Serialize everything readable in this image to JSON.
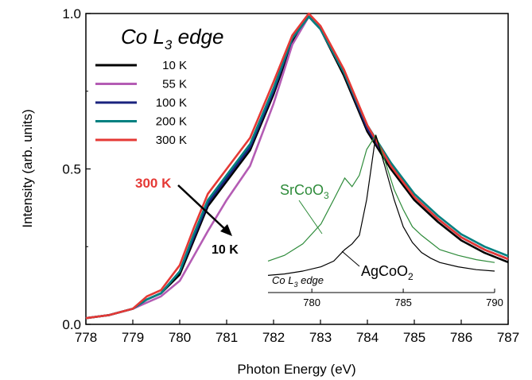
{
  "chart_data": [
    {
      "type": "line",
      "title": "Co L3 edge",
      "title_parts": {
        "main": "Co L",
        "sub": "3",
        "tail": " edge"
      },
      "xlabel": "Photon Energy (eV)",
      "ylabel": "Intensity (arb. units)",
      "xlim": [
        778,
        787
      ],
      "ylim": [
        0,
        1.0
      ],
      "x_ticks": [
        "778",
        "779",
        "780",
        "781",
        "782",
        "783",
        "784",
        "785",
        "786",
        "787"
      ],
      "y_ticks": [
        "0.0",
        "0.5",
        "1.0"
      ],
      "legend_position": "top-left",
      "series": [
        {
          "name": "10 K",
          "color": "#000000",
          "x": [
            778,
            778.5,
            779,
            779.3,
            779.6,
            780,
            780.3,
            780.6,
            781,
            781.5,
            782,
            782.4,
            782.75,
            783,
            783.5,
            784,
            784.5,
            785,
            785.5,
            786,
            786.5,
            787
          ],
          "y": [
            0.02,
            0.03,
            0.05,
            0.08,
            0.1,
            0.16,
            0.27,
            0.38,
            0.46,
            0.56,
            0.74,
            0.91,
            0.99,
            0.95,
            0.8,
            0.62,
            0.5,
            0.4,
            0.33,
            0.27,
            0.23,
            0.2
          ]
        },
        {
          "name": "55 K",
          "color": "#b45cb4",
          "x": [
            778,
            778.5,
            779,
            779.3,
            779.6,
            780,
            780.3,
            780.6,
            781,
            781.5,
            782,
            782.4,
            782.75,
            783,
            783.5,
            784,
            784.5,
            785,
            785.5,
            786,
            786.5,
            787
          ],
          "y": [
            0.02,
            0.03,
            0.05,
            0.07,
            0.09,
            0.14,
            0.22,
            0.3,
            0.4,
            0.51,
            0.71,
            0.9,
            0.99,
            0.95,
            0.81,
            0.63,
            0.51,
            0.41,
            0.34,
            0.28,
            0.24,
            0.21
          ]
        },
        {
          "name": "100 K",
          "color": "#1a237e",
          "x": [
            778,
            778.5,
            779,
            779.3,
            779.6,
            780,
            780.3,
            780.6,
            781,
            781.5,
            782,
            782.4,
            782.75,
            783,
            783.5,
            784,
            784.5,
            785,
            785.5,
            786,
            786.5,
            787
          ],
          "y": [
            0.02,
            0.03,
            0.05,
            0.08,
            0.1,
            0.17,
            0.28,
            0.39,
            0.47,
            0.57,
            0.75,
            0.92,
            0.99,
            0.95,
            0.81,
            0.63,
            0.51,
            0.41,
            0.34,
            0.28,
            0.24,
            0.21
          ]
        },
        {
          "name": "200 K",
          "color": "#008080",
          "x": [
            778,
            778.5,
            779,
            779.3,
            779.6,
            780,
            780.3,
            780.6,
            781,
            781.5,
            782,
            782.4,
            782.75,
            783,
            783.5,
            784,
            784.5,
            785,
            785.5,
            786,
            786.5,
            787
          ],
          "y": [
            0.02,
            0.03,
            0.05,
            0.08,
            0.1,
            0.17,
            0.29,
            0.4,
            0.48,
            0.58,
            0.76,
            0.92,
            0.99,
            0.95,
            0.81,
            0.64,
            0.52,
            0.42,
            0.35,
            0.29,
            0.25,
            0.22
          ]
        },
        {
          "name": "300 K",
          "color": "#e53935",
          "x": [
            778,
            778.5,
            779,
            779.3,
            779.6,
            780,
            780.3,
            780.6,
            781,
            781.5,
            782,
            782.4,
            782.75,
            783,
            783.5,
            784,
            784.5,
            785,
            785.5,
            786,
            786.5,
            787
          ],
          "y": [
            0.02,
            0.03,
            0.05,
            0.09,
            0.11,
            0.19,
            0.31,
            0.42,
            0.5,
            0.6,
            0.78,
            0.93,
            1.0,
            0.96,
            0.82,
            0.64,
            0.51,
            0.41,
            0.34,
            0.28,
            0.24,
            0.21
          ]
        }
      ],
      "annotations": {
        "label_300k": {
          "text": "300 K",
          "color": "#e53935"
        },
        "label_10k": {
          "text": "10 K",
          "color": "#000000"
        }
      }
    },
    {
      "type": "line",
      "title": "Co L3 edge",
      "title_parts": {
        "main": "Co L",
        "sub": "3",
        "tail": " edge"
      },
      "xlim": [
        777.6,
        790
      ],
      "ylim": [
        0,
        1.0
      ],
      "x_ticks": [
        "780",
        "785",
        "790"
      ],
      "series": [
        {
          "name": "SrCoO3",
          "color": "#2e8b3a",
          "label_parts": {
            "main": "SrCoO",
            "sub": "3"
          },
          "x": [
            777.6,
            778.5,
            779.5,
            780.5,
            781.2,
            781.8,
            782.2,
            782.6,
            783.0,
            783.5,
            784.0,
            784.5,
            785.0,
            785.5,
            786.0,
            786.5,
            787.0,
            788.0,
            789.0,
            790
          ],
          "y": [
            0.12,
            0.16,
            0.24,
            0.38,
            0.55,
            0.7,
            0.64,
            0.72,
            0.9,
            1.0,
            0.82,
            0.62,
            0.48,
            0.36,
            0.3,
            0.25,
            0.2,
            0.16,
            0.13,
            0.11
          ]
        },
        {
          "name": "AgCoO2",
          "color": "#000000",
          "label_parts": {
            "main": "AgCoO",
            "sub": "2"
          },
          "x": [
            777.6,
            778.5,
            779.5,
            780.5,
            781.2,
            781.8,
            782.2,
            782.6,
            783.0,
            783.5,
            784.0,
            784.5,
            785.0,
            785.5,
            786.0,
            786.5,
            787.0,
            788.0,
            789.0,
            790
          ],
          "y": [
            0.02,
            0.03,
            0.05,
            0.08,
            0.12,
            0.2,
            0.24,
            0.3,
            0.55,
            1.0,
            0.78,
            0.55,
            0.36,
            0.25,
            0.18,
            0.14,
            0.11,
            0.08,
            0.06,
            0.05
          ]
        }
      ]
    }
  ]
}
